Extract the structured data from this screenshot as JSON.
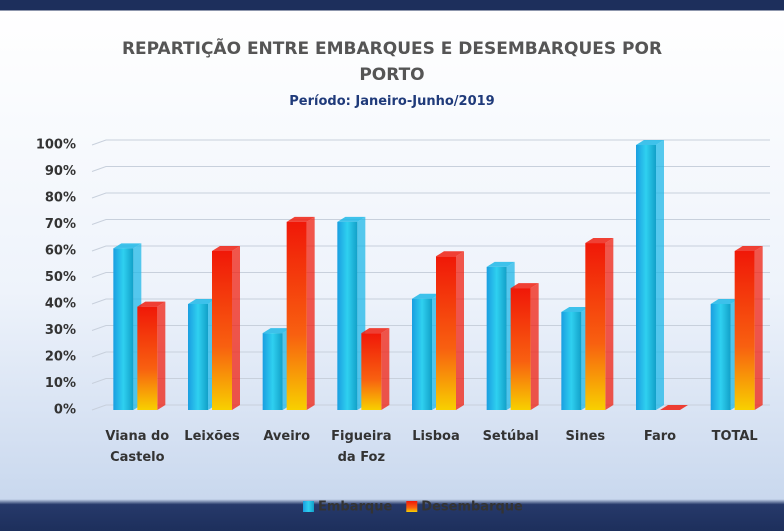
{
  "chart_data": {
    "type": "bar",
    "title": "REPARTIÇÃO ENTRE EMBARQUES E DESEMBARQUES POR PORTO",
    "subtitle": "Período: Janeiro-Junho/2019",
    "categories": [
      "Viana do Castelo",
      "Leixões",
      "Aveiro",
      "Figueira da Foz",
      "Lisboa",
      "Setúbal",
      "Sines",
      "Faro",
      "TOTAL"
    ],
    "series": [
      {
        "name": "Embarque",
        "color": "#1fb8e8",
        "values": [
          61,
          40,
          29,
          71,
          42,
          54,
          37,
          100,
          40
        ]
      },
      {
        "name": "Desembarque",
        "color": "#f02010",
        "values": [
          39,
          60,
          71,
          29,
          58,
          46,
          63,
          0,
          60
        ]
      }
    ],
    "ylim": [
      0,
      100
    ],
    "yticks": [
      {
        "value": 0,
        "label": "0%"
      },
      {
        "value": 10,
        "label": "10%"
      },
      {
        "value": 20,
        "label": "20%"
      },
      {
        "value": 30,
        "label": "30%"
      },
      {
        "value": 40,
        "label": "40%"
      },
      {
        "value": 50,
        "label": "50%"
      },
      {
        "value": 60,
        "label": "60%"
      },
      {
        "value": 70,
        "label": "70%"
      },
      {
        "value": 80,
        "label": "80%"
      },
      {
        "value": 90,
        "label": "90%"
      },
      {
        "value": 100,
        "label": "100%"
      }
    ],
    "grid": true,
    "legend": "bottom"
  }
}
